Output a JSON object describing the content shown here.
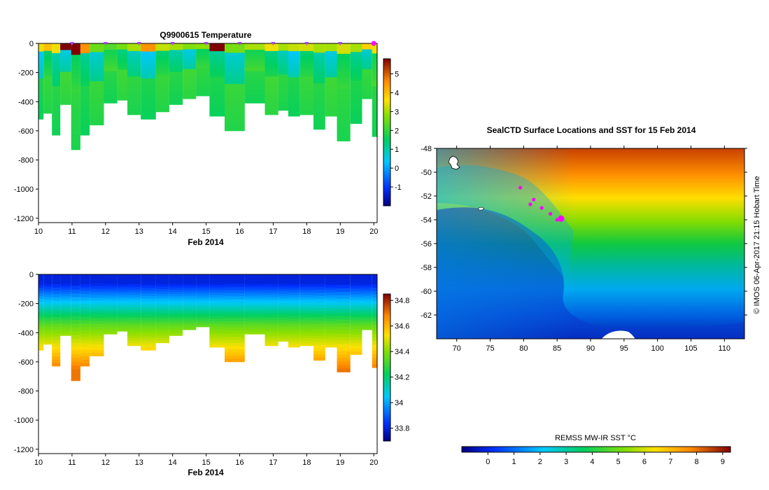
{
  "chart_data": [
    {
      "type": "heatmap",
      "title": "Q9900615  Temperature",
      "xlabel": "Feb 2014",
      "ylabel": "",
      "x_ticks": [
        "10",
        "11",
        "12",
        "13",
        "14",
        "15",
        "16",
        "17",
        "18",
        "19",
        "20"
      ],
      "xlim": [
        10,
        20.1
      ],
      "y_ticks": [
        "0",
        "-200",
        "-400",
        "-600",
        "-800",
        "-1000",
        "-1200"
      ],
      "ylim": [
        -1230,
        0
      ],
      "colorbar": {
        "min": -2,
        "max": 5.8,
        "ticks": [
          "-1",
          "0",
          "1",
          "2",
          "3",
          "4",
          "5"
        ]
      },
      "profiles": [
        {
          "t": 10.0,
          "depth": 520,
          "surf": 3.5
        },
        {
          "t": 10.3,
          "depth": 480,
          "surf": 4.0
        },
        {
          "t": 10.5,
          "depth": 630,
          "surf": 3.5
        },
        {
          "t": 10.8,
          "depth": 420,
          "surf": 5.8
        },
        {
          "t": 11.15,
          "depth": 730,
          "surf": 5.8
        },
        {
          "t": 11.35,
          "depth": 630,
          "surf": 4.5
        },
        {
          "t": 11.7,
          "depth": 560,
          "surf": 2.5
        },
        {
          "t": 12.2,
          "depth": 410,
          "surf": 2.3
        },
        {
          "t": 12.5,
          "depth": 390,
          "surf": 2.6
        },
        {
          "t": 12.8,
          "depth": 490,
          "surf": 3.0
        },
        {
          "t": 13.3,
          "depth": 520,
          "surf": 4.5
        },
        {
          "t": 13.7,
          "depth": 470,
          "surf": 3.2
        },
        {
          "t": 14.1,
          "depth": 420,
          "surf": 3.0
        },
        {
          "t": 14.5,
          "depth": 380,
          "surf": 2.7
        },
        {
          "t": 14.9,
          "depth": 360,
          "surf": 2.8
        },
        {
          "t": 15.3,
          "depth": 500,
          "surf": 5.8
        },
        {
          "t": 15.8,
          "depth": 600,
          "surf": 2.6
        },
        {
          "t": 16.5,
          "depth": 410,
          "surf": 3.0
        },
        {
          "t": 17.0,
          "depth": 490,
          "surf": 3.5
        },
        {
          "t": 17.3,
          "depth": 460,
          "surf": 3.0
        },
        {
          "t": 17.6,
          "depth": 500,
          "surf": 3.2
        },
        {
          "t": 18.0,
          "depth": 490,
          "surf": 3.3
        },
        {
          "t": 18.4,
          "depth": 590,
          "surf": 3.0
        },
        {
          "t": 18.7,
          "depth": 500,
          "surf": 3.0
        },
        {
          "t": 19.1,
          "depth": 670,
          "surf": 3.3
        },
        {
          "t": 19.5,
          "depth": 550,
          "surf": 3.0
        },
        {
          "t": 19.8,
          "depth": 380,
          "surf": 3.8
        },
        {
          "t": 20.1,
          "depth": 640,
          "surf": 3.5
        }
      ]
    },
    {
      "type": "heatmap",
      "title": "",
      "xlabel": "Feb 2014",
      "ylabel": "",
      "x_ticks": [
        "10",
        "11",
        "12",
        "13",
        "14",
        "15",
        "16",
        "17",
        "18",
        "19",
        "20"
      ],
      "xlim": [
        10,
        20.1
      ],
      "y_ticks": [
        "0",
        "-200",
        "-400",
        "-600",
        "-800",
        "-1000",
        "-1200"
      ],
      "ylim": [
        -1230,
        0
      ],
      "colorbar": {
        "min": 33.7,
        "max": 34.85,
        "ticks": [
          "33.8",
          "34",
          "34.2",
          "34.4",
          "34.6",
          "34.8"
        ]
      }
    },
    {
      "type": "heatmap",
      "title": "SealCTD Surface Locations and SST for 15 Feb 2014",
      "xlabel": "",
      "ylabel": "",
      "x_ticks": [
        "70",
        "75",
        "80",
        "85",
        "90",
        "95",
        "100",
        "105",
        "110"
      ],
      "xlim": [
        67,
        113
      ],
      "y_ticks": [
        "-48",
        "-50",
        "-52",
        "-54",
        "-56",
        "-58",
        "-60",
        "-62"
      ],
      "ylim": [
        -64,
        -48
      ],
      "colorbar": {
        "label": "REMSS MW-IR SST °C",
        "min": -1,
        "max": 9.3,
        "ticks": [
          "0",
          "1",
          "2",
          "3",
          "4",
          "5",
          "6",
          "7",
          "8",
          "9"
        ]
      },
      "track": [
        {
          "lon": 79.5,
          "lat": -51.3
        },
        {
          "lon": 81.5,
          "lat": -52.3
        },
        {
          "lon": 81.0,
          "lat": -52.7
        },
        {
          "lon": 82.7,
          "lat": -53.0
        },
        {
          "lon": 84.0,
          "lat": -53.5
        },
        {
          "lon": 85.0,
          "lat": -54.0
        },
        {
          "lon": 85.6,
          "lat": -53.9
        }
      ]
    }
  ],
  "credit": "©  IMOS 06-Apr-2017 21:15 Hobart Time"
}
